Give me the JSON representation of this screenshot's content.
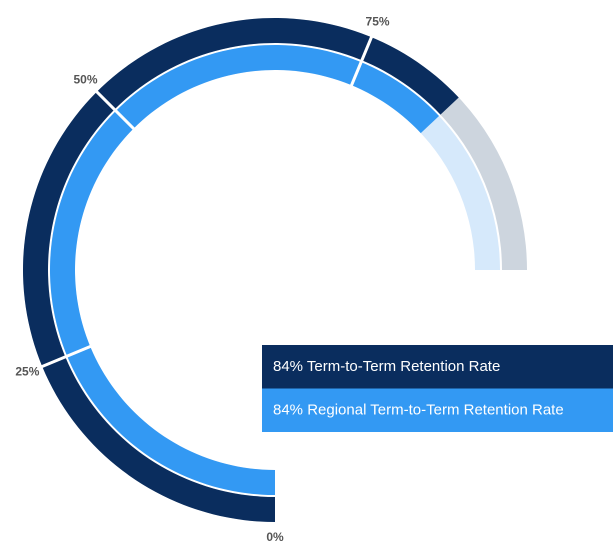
{
  "chart_data": {
    "type": "radialBar",
    "series": [
      {
        "name": "84% Term-to-Term Retention Rate",
        "color": "#0a2d5e",
        "track_color": "#cdd5de",
        "values": [
          84
        ]
      },
      {
        "name": "84% Regional Term-to-Term Retention Rate",
        "color": "#3399f3",
        "track_color": "#d6e9fb",
        "values": [
          84
        ]
      }
    ],
    "lim": [
      0,
      100
    ],
    "ticks": [
      {
        "value": 0,
        "label": "0%"
      },
      {
        "value": 25,
        "label": "25%"
      },
      {
        "value": 50,
        "label": "50%"
      },
      {
        "value": 75,
        "label": "75%"
      }
    ]
  }
}
